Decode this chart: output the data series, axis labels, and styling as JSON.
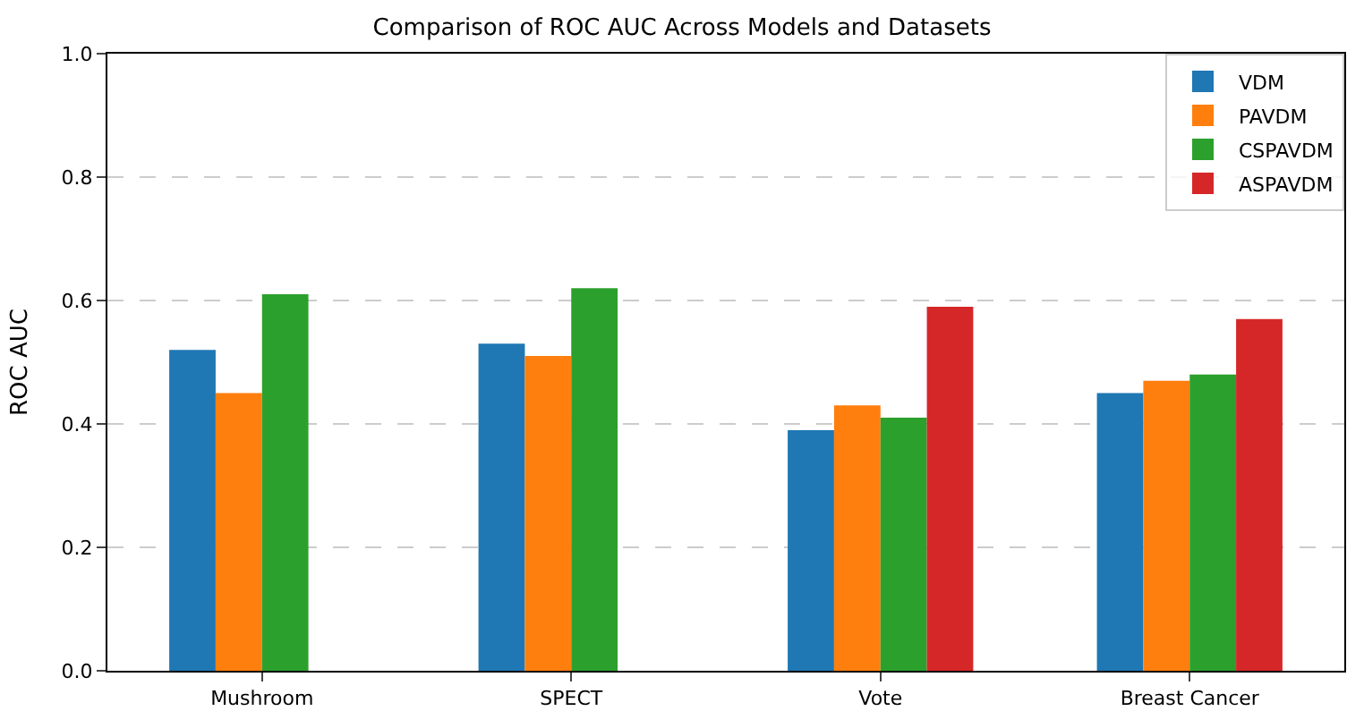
{
  "chart_data": {
    "type": "bar",
    "title": "Comparison of ROC AUC Across Models and Datasets",
    "ylabel": "ROC AUC",
    "categories": [
      "Mushroom",
      "SPECT",
      "Vote",
      "Breast Cancer"
    ],
    "series": [
      {
        "name": "VDM",
        "color": "#1f77b4",
        "values": [
          0.52,
          0.53,
          0.39,
          0.45
        ]
      },
      {
        "name": "PAVDM",
        "color": "#ff7f0e",
        "values": [
          0.45,
          0.51,
          0.43,
          0.47
        ]
      },
      {
        "name": "CSPAVDM",
        "color": "#2ca02c",
        "values": [
          0.61,
          0.62,
          0.41,
          0.48
        ]
      },
      {
        "name": "ASPAVDM",
        "color": "#d62728",
        "values": [
          null,
          null,
          0.59,
          0.57
        ]
      }
    ],
    "ylim": [
      0,
      1.0
    ],
    "yticks": [
      {
        "value": 0,
        "label": "0.0"
      },
      {
        "value": 0.2,
        "label": "0.2"
      },
      {
        "value": 0.4,
        "label": "0.4"
      },
      {
        "value": 0.6,
        "label": "0.6"
      },
      {
        "value": 0.8,
        "label": "0.8"
      },
      {
        "value": 1.0,
        "label": "1.0"
      }
    ],
    "grid": "y",
    "legend": "top right"
  }
}
